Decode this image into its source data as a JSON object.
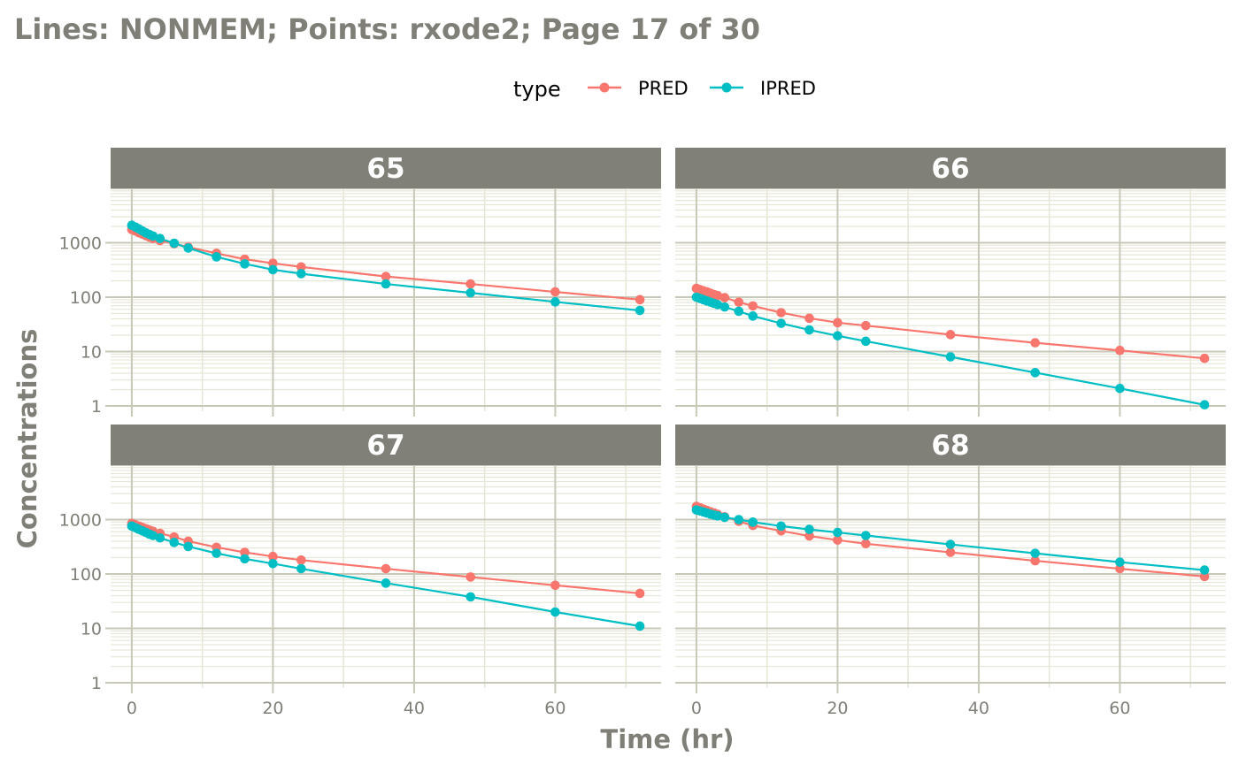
{
  "chart_data": {
    "type": "line",
    "title": "Lines: NONMEM; Points: rxode2; Page 17 of 30",
    "xlabel": "Time (hr)",
    "ylabel": "Concentrations",
    "x_scale": "linear",
    "y_scale": "log10",
    "xlim": [
      -3,
      75
    ],
    "ylim": [
      0.8,
      10000
    ],
    "x_ticks": [
      0,
      20,
      40,
      60
    ],
    "y_ticks": [
      1,
      10,
      100,
      1000
    ],
    "y_tick_labels": [
      "1",
      "10",
      "100",
      "1000"
    ],
    "grid": true,
    "legend": {
      "title": "type",
      "position": "top",
      "entries": [
        {
          "name": "PRED",
          "color": "#F8766D"
        },
        {
          "name": "IPRED",
          "color": "#00BFC4"
        }
      ]
    },
    "colors": {
      "strip_bg": "#808078",
      "panel_bg": "#ffffff",
      "grid_major": "#c8c8b8",
      "grid_minor": "#e6e6d6",
      "text": "#7f7f78"
    },
    "x": [
      0,
      0.5,
      1,
      1.5,
      2,
      2.5,
      3,
      4,
      6,
      8,
      12,
      16,
      20,
      24,
      36,
      48,
      60,
      72
    ],
    "panels": [
      {
        "id": "65",
        "series": [
          {
            "name": "PRED",
            "y": [
              1750,
              1640,
              1530,
              1440,
              1350,
              1270,
              1200,
              1100,
              960,
              830,
              640,
              500,
              420,
              360,
              240,
              175,
              125,
              90
            ]
          },
          {
            "name": "IPRED",
            "y": [
              2100,
              1950,
              1800,
              1650,
              1520,
              1420,
              1330,
              1200,
              980,
              800,
              550,
              410,
              320,
              270,
              175,
              120,
              82,
              57
            ]
          }
        ]
      },
      {
        "id": "66",
        "series": [
          {
            "name": "PRED",
            "y": [
              145,
              138,
              131,
              125,
              118,
              112,
              107,
              98,
              81,
              69,
              52,
              41,
              34,
              30,
              20.5,
              14.5,
              10.5,
              7.5
            ]
          },
          {
            "name": "IPRED",
            "y": [
              100,
              95,
              90,
              85,
              81,
              77,
              73,
              66,
              55,
              45,
              33,
              25,
              19.5,
              15.5,
              8,
              4.1,
              2.1,
              1.05
            ]
          }
        ]
      },
      {
        "id": "67",
        "series": [
          {
            "name": "PRED",
            "y": [
              850,
              800,
              760,
              720,
              680,
              640,
              610,
              560,
              480,
              400,
              310,
              250,
              210,
              180,
              125,
              88,
              62,
              44
            ]
          },
          {
            "name": "IPRED",
            "y": [
              760,
              710,
              660,
              620,
              580,
              540,
              510,
              460,
              380,
              320,
              240,
              190,
              155,
              125,
              68,
              38,
              20,
              11
            ]
          }
        ]
      },
      {
        "id": "68",
        "series": [
          {
            "name": "PRED",
            "y": [
              1750,
              1650,
              1560,
              1470,
              1390,
              1320,
              1250,
              1130,
              930,
              780,
              620,
              500,
              420,
              360,
              250,
              175,
              125,
              90
            ]
          },
          {
            "name": "IPRED",
            "y": [
              1500,
              1440,
              1380,
              1320,
              1260,
              1210,
              1170,
              1100,
              1000,
              900,
              760,
              660,
              580,
              510,
              350,
              240,
              165,
              118
            ]
          }
        ]
      }
    ]
  }
}
